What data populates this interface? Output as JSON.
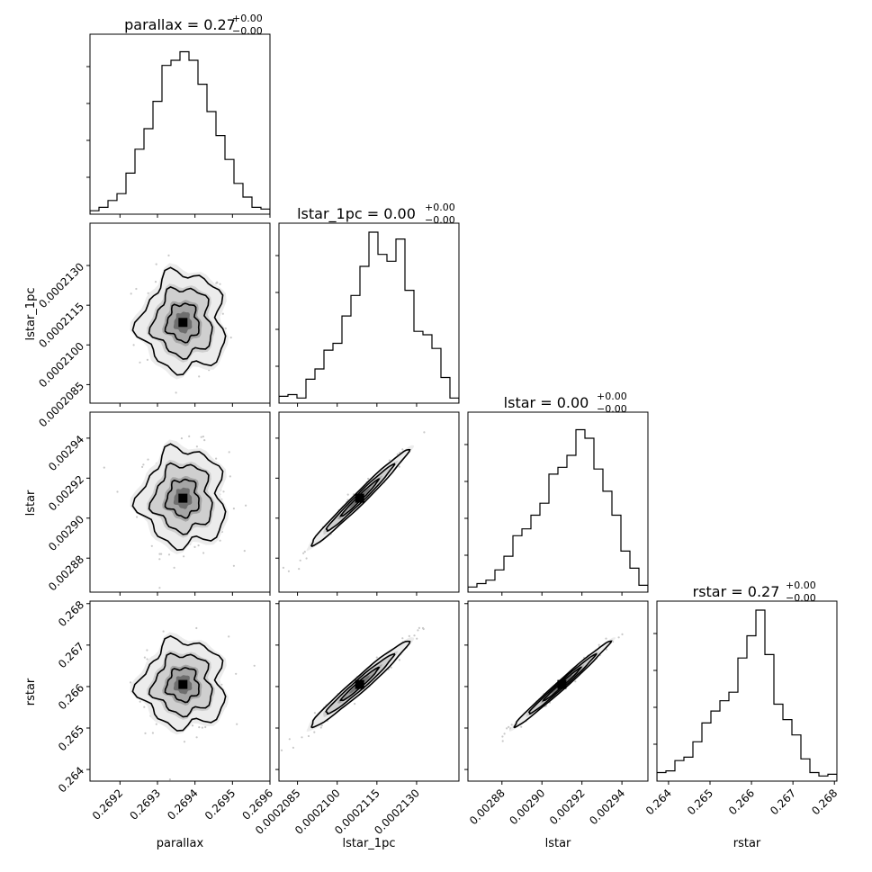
{
  "chart_data": {
    "type": "corner",
    "parameters": [
      "parallax",
      "lstar_1pc",
      "lstar",
      "rstar"
    ],
    "titles": [
      {
        "param": "parallax",
        "base": "parallax = 0.27",
        "sup": "+0.00",
        "sub": "−0.00"
      },
      {
        "param": "lstar_1pc",
        "base": "lstar_1pc = 0.00",
        "sup": "+0.00",
        "sub": "−0.00"
      },
      {
        "param": "lstar",
        "base": "lstar = 0.00",
        "sup": "+0.00",
        "sub": "−0.00"
      },
      {
        "param": "rstar",
        "base": "rstar = 0.27",
        "sup": "+0.00",
        "sub": "−0.00"
      }
    ],
    "axes": [
      {
        "name": "parallax",
        "label": "parallax",
        "range": [
          0.26912,
          0.2696
        ],
        "ticks": [
          0.2692,
          0.2693,
          0.2694,
          0.2695,
          0.2696
        ],
        "tick_labels": [
          "0.2692",
          "0.2693",
          "0.2694",
          "0.2695",
          "0.2696"
        ]
      },
      {
        "name": "lstar_1pc",
        "label": "lstar_1pc",
        "range": [
          0.0002078,
          0.0002146
        ],
        "ticks": [
          0.0002085,
          0.00021,
          0.0002115,
          0.000213
        ],
        "tick_labels": [
          "0.0002085",
          "0.0002100",
          "0.0002115",
          "0.0002130"
        ]
      },
      {
        "name": "lstar",
        "label": "lstar",
        "range": [
          0.002863,
          0.002953
        ],
        "ticks": [
          0.00288,
          0.0029,
          0.00292,
          0.00294
        ],
        "tick_labels": [
          "0.00288",
          "0.00290",
          "0.00292",
          "0.00294"
        ]
      },
      {
        "name": "rstar",
        "label": "rstar",
        "range": [
          0.26372,
          0.26806
        ],
        "ticks": [
          0.264,
          0.265,
          0.266,
          0.267,
          0.268
        ],
        "tick_labels": [
          "0.264",
          "0.265",
          "0.266",
          "0.267",
          "0.268"
        ]
      }
    ],
    "means": [
      0.269368,
      0.00021085,
      0.00291,
      0.26605
    ],
    "sigmas": [
      5.25e-05,
      8.8e-07,
      1.15e-05,
      0.000495
    ],
    "histograms": [
      [
        0.02,
        0.04,
        0.08,
        0.12,
        0.24,
        0.38,
        0.5,
        0.66,
        0.87,
        0.9,
        0.95,
        0.9,
        0.76,
        0.6,
        0.46,
        0.32,
        0.18,
        0.1,
        0.04,
        0.03
      ],
      [
        0.04,
        0.05,
        0.03,
        0.14,
        0.2,
        0.31,
        0.35,
        0.51,
        0.63,
        0.8,
        1.0,
        0.87,
        0.83,
        0.96,
        0.66,
        0.42,
        0.4,
        0.32,
        0.15,
        0.03
      ],
      [
        0.03,
        0.05,
        0.07,
        0.13,
        0.21,
        0.33,
        0.37,
        0.45,
        0.52,
        0.69,
        0.73,
        0.8,
        0.95,
        0.9,
        0.72,
        0.59,
        0.45,
        0.24,
        0.14,
        0.04
      ],
      [
        0.05,
        0.06,
        0.12,
        0.14,
        0.23,
        0.34,
        0.41,
        0.47,
        0.52,
        0.72,
        0.85,
        1.0,
        0.74,
        0.45,
        0.36,
        0.27,
        0.13,
        0.05,
        0.03,
        0.04
      ]
    ],
    "correlations": [
      [
        1,
        0,
        0,
        0
      ],
      [
        0,
        1,
        0.985,
        0.975
      ],
      [
        0,
        0.985,
        1,
        0.99
      ],
      [
        0,
        0.975,
        0.99,
        1
      ]
    ],
    "levels": 3,
    "bins": 20,
    "grid": false,
    "legend": "none"
  }
}
